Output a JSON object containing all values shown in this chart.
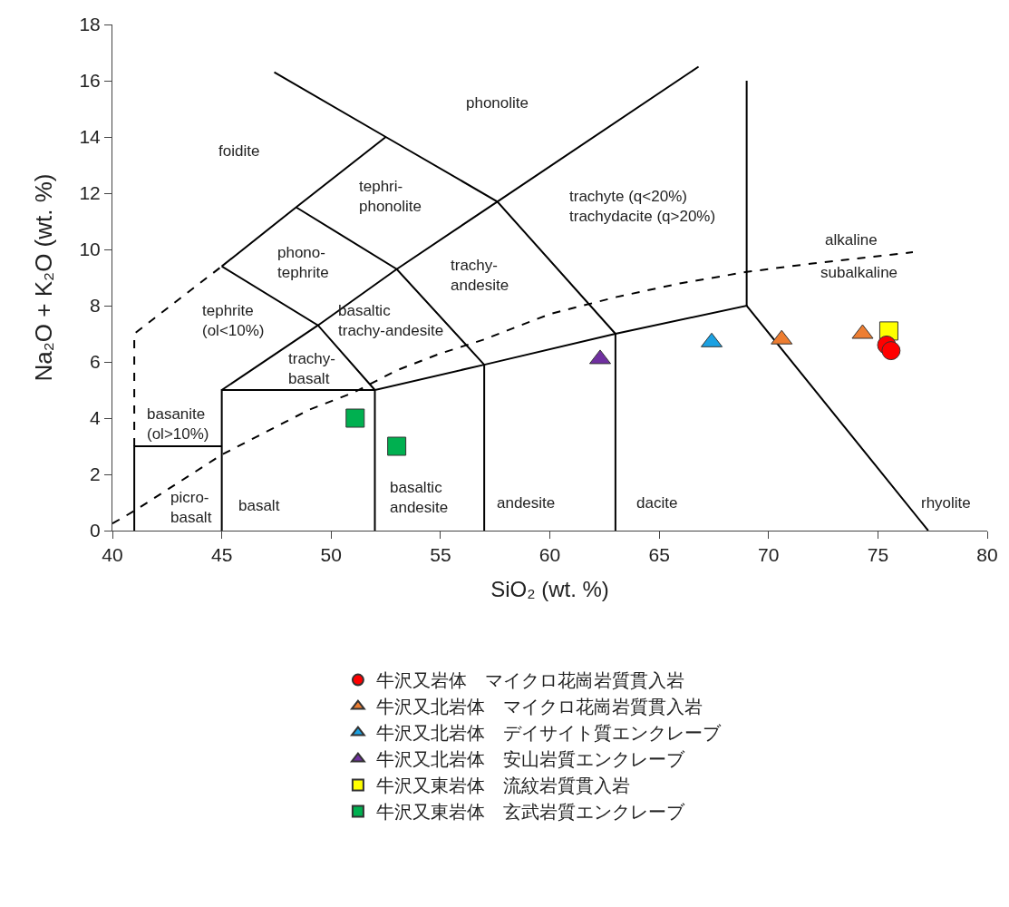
{
  "chart_data": {
    "type": "scatter",
    "xlabel": "SiO₂ (wt. %)",
    "ylabel": "Na₂O + K₂O (wt. %)",
    "xlim": [
      40,
      80
    ],
    "xticks": [
      40,
      45,
      50,
      55,
      60,
      65,
      70,
      75,
      80
    ],
    "ylim": [
      0,
      18
    ],
    "yticks": [
      0,
      2,
      4,
      6,
      8,
      10,
      12,
      14,
      16,
      18
    ],
    "grid": false,
    "legend": "bottom",
    "series": [
      {
        "type": "line",
        "color": "#000000",
        "line_style": "solid",
        "x": [
          41,
          41,
          45
        ],
        "values": [
          0,
          3,
          3
        ]
      },
      {
        "type": "line",
        "color": "#000000",
        "line_style": "solid",
        "x": [
          45,
          45,
          52
        ],
        "values": [
          0,
          5,
          5
        ]
      },
      {
        "type": "line",
        "color": "#000000",
        "line_style": "solid",
        "x": [
          52,
          52,
          57,
          63,
          69,
          77.3
        ],
        "values": [
          0,
          5,
          5.9,
          7,
          8,
          0
        ]
      },
      {
        "type": "line",
        "color": "#000000",
        "line_style": "solid",
        "x": [
          57,
          57
        ],
        "values": [
          0,
          5.9
        ]
      },
      {
        "type": "line",
        "color": "#000000",
        "line_style": "solid",
        "x": [
          63,
          63
        ],
        "values": [
          0,
          7
        ]
      },
      {
        "type": "line",
        "color": "#000000",
        "line_style": "solid",
        "x": [
          69,
          69
        ],
        "values": [
          8,
          16
        ]
      },
      {
        "type": "line",
        "color": "#000000",
        "line_style": "solid",
        "x": [
          45,
          49.4,
          53,
          57.6,
          66.8
        ],
        "values": [
          5,
          7.3,
          9.3,
          11.7,
          16.5
        ]
      },
      {
        "type": "line",
        "color": "#000000",
        "line_style": "solid",
        "x": [
          45,
          49.4,
          52
        ],
        "values": [
          9.4,
          7.3,
          5
        ]
      },
      {
        "type": "line",
        "color": "#000000",
        "line_style": "solid",
        "x": [
          48.4,
          53,
          57
        ],
        "values": [
          11.5,
          9.3,
          5.9
        ]
      },
      {
        "type": "line",
        "color": "#000000",
        "line_style": "solid",
        "x": [
          47.4,
          52.5,
          57.6,
          63
        ],
        "values": [
          16.3,
          14,
          11.7,
          7
        ]
      },
      {
        "type": "line",
        "color": "#000000",
        "line_style": "solid",
        "x": [
          45,
          48.4,
          52.5
        ],
        "values": [
          9.4,
          11.5,
          14
        ]
      },
      {
        "type": "line",
        "color": "#000000",
        "line_style": "dashed",
        "x": [
          41,
          41,
          45
        ],
        "values": [
          3,
          7,
          9.4
        ]
      },
      {
        "type": "line",
        "color": "#000000",
        "line_style": "dashed",
        "x": [
          40,
          41,
          43,
          45,
          47,
          49,
          51,
          53,
          55,
          57,
          60,
          63,
          66,
          69,
          72,
          76.6
        ],
        "values": [
          0.25,
          0.7,
          1.7,
          2.7,
          3.5,
          4.3,
          4.9,
          5.7,
          6.3,
          6.8,
          7.7,
          8.3,
          8.8,
          9.2,
          9.5,
          9.9
        ]
      },
      {
        "type": "scatter",
        "name": "牛沢又岩体　マイクロ花崗岩質貫入岩",
        "color": "#ff0000",
        "marker": "circle",
        "x": [
          75.4,
          75.6
        ],
        "values": [
          6.6,
          6.4
        ]
      },
      {
        "type": "scatter",
        "name": "牛沢又北岩体　マイクロ花崗岩質貫入岩",
        "color": "#ed7d31",
        "marker": "triangle",
        "x": [
          70.6,
          74.3
        ],
        "values": [
          6.8,
          7.0
        ]
      },
      {
        "type": "scatter",
        "name": "牛沢又北岩体　デイサイト質エンクレーブ",
        "color": "#1ba1e2",
        "marker": "triangle",
        "x": [
          67.4
        ],
        "values": [
          6.7
        ]
      },
      {
        "type": "scatter",
        "name": "牛沢又北岩体　安山岩質エンクレーブ",
        "color": "#7030a0",
        "marker": "triangle",
        "x": [
          62.3
        ],
        "values": [
          6.1
        ]
      },
      {
        "type": "scatter",
        "name": "牛沢又東岩体　流紋岩質貫入岩",
        "color": "#ffff00",
        "marker": "square",
        "x": [
          75.5
        ],
        "values": [
          7.1
        ]
      },
      {
        "type": "scatter",
        "name": "牛沢又東岩体　玄武岩質エンクレーブ",
        "color": "#00b050",
        "marker": "square",
        "x": [
          51.1,
          53.0
        ],
        "values": [
          4.0,
          3.0
        ]
      }
    ],
    "annotations": [
      "phonolite",
      "foidite",
      "tephri-\nphonolite",
      "trachyte (q<20%)\ntrachydacite (q>20%)",
      "phono-\ntephrite",
      "trachy-\nandesite",
      "tephrite\n(ol<10%)",
      "basaltic\ntrachy-andesite",
      "trachy-\nbasalt",
      "basanite\n(ol>10%)",
      "picro-\nbasalt",
      "basalt",
      "basaltic\nandesite",
      "andesite",
      "dacite",
      "rhyolite",
      "alkaline",
      "subalkaline"
    ]
  }
}
